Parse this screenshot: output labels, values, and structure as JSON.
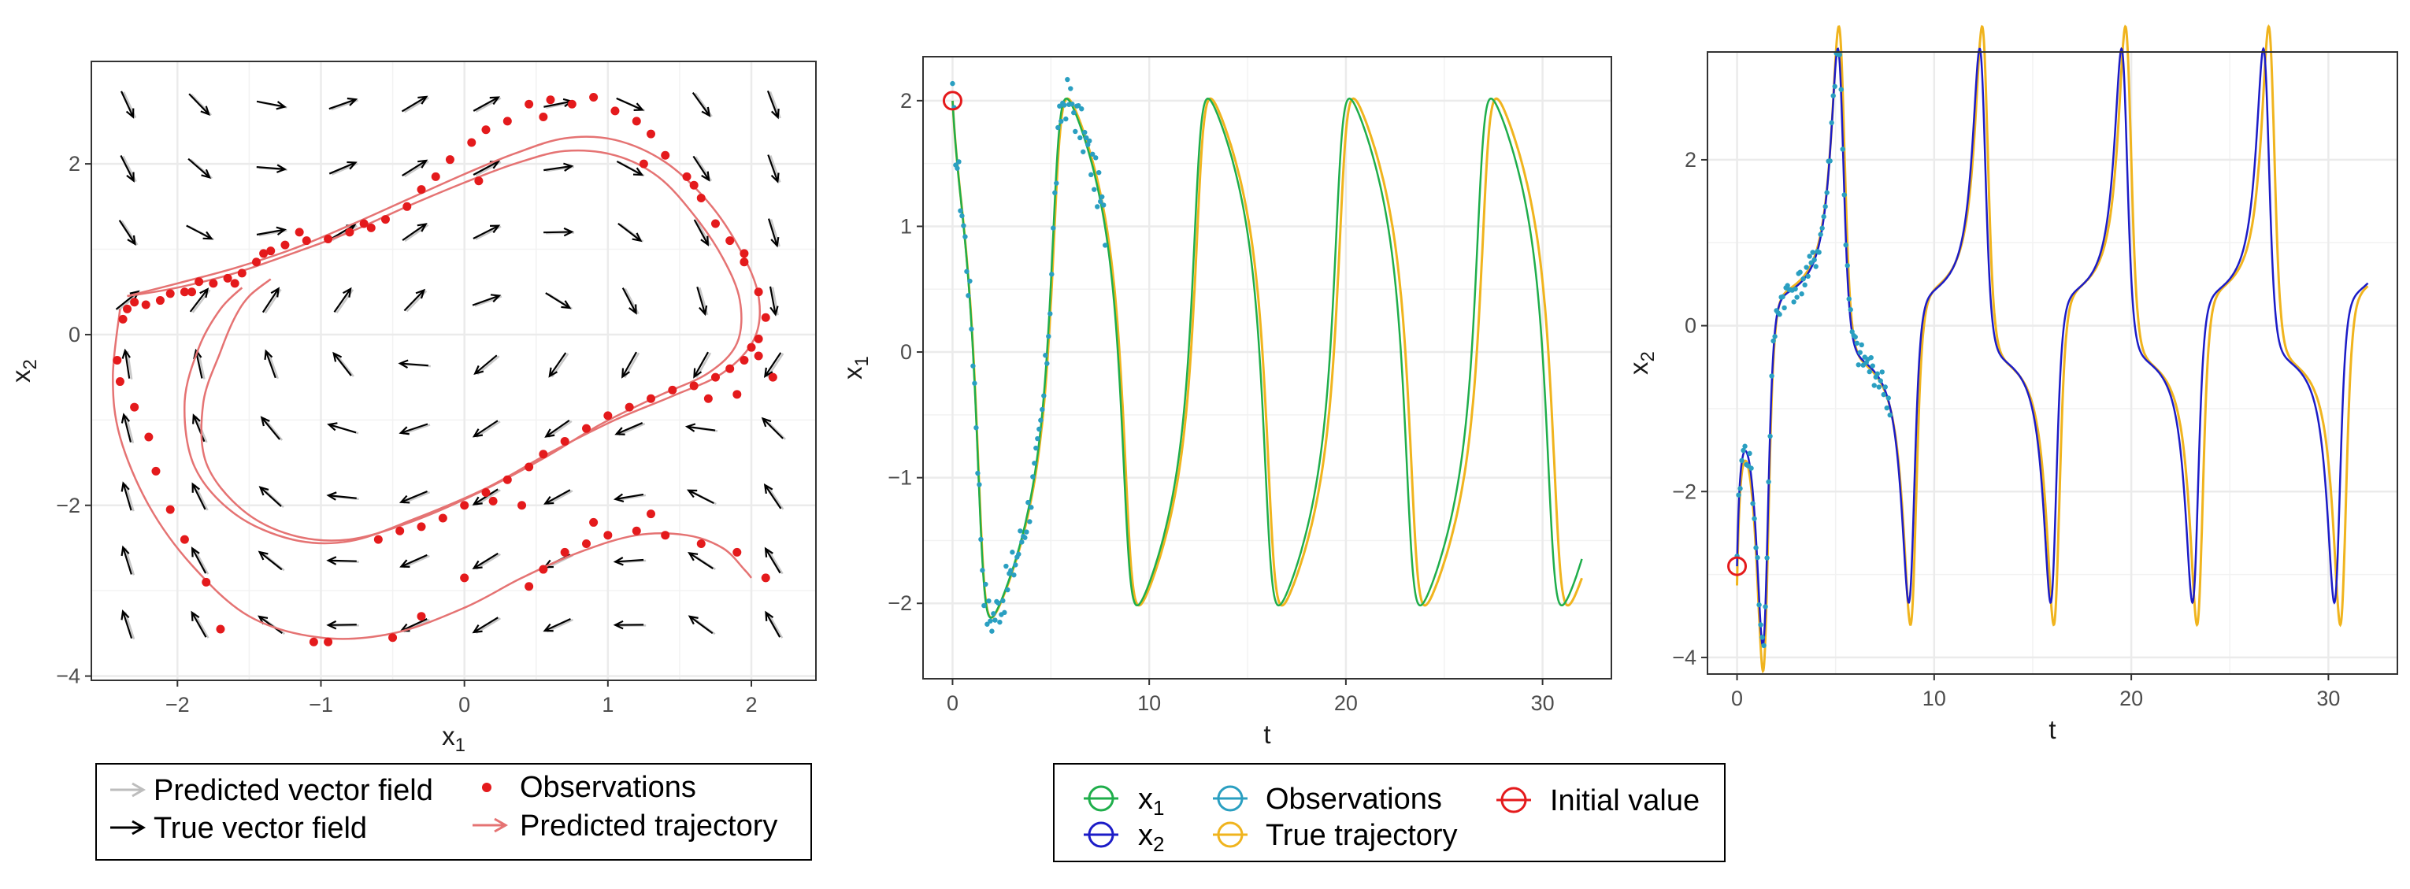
{
  "chart_data": [
    {
      "type": "scatter",
      "id": "phase",
      "title": "",
      "xlabel": "x",
      "xlabel_sub": "1",
      "ylabel": "x",
      "ylabel_sub": "2",
      "xlim": [
        -2.6,
        2.45
      ],
      "ylim": [
        -4.05,
        3.2
      ],
      "xticks": [
        -2,
        -1,
        0,
        1,
        2
      ],
      "xtick_labels": [
        "−2",
        "−1",
        "0",
        "1",
        "2"
      ],
      "yticks": [
        -4,
        -2,
        0,
        2
      ],
      "ytick_labels": [
        "−4",
        "−2",
        "0",
        "2"
      ],
      "field_x": [
        -2.35,
        -1.85,
        -1.35,
        -0.85,
        -0.35,
        0.15,
        0.65,
        1.15,
        1.65,
        2.15
      ],
      "field_y": [
        2.7,
        1.95,
        1.2,
        0.4,
        -0.35,
        -1.1,
        -1.9,
        -2.65,
        -3.4
      ],
      "observations": [
        [
          -2.42,
          -0.3
        ],
        [
          -2.38,
          0.18
        ],
        [
          -2.35,
          0.3
        ],
        [
          -2.3,
          0.38
        ],
        [
          -2.22,
          0.35
        ],
        [
          -2.12,
          0.4
        ],
        [
          -2.05,
          0.48
        ],
        [
          -1.95,
          0.5
        ],
        [
          -1.85,
          0.62
        ],
        [
          -1.75,
          0.6
        ],
        [
          -1.65,
          0.66
        ],
        [
          -1.55,
          0.72
        ],
        [
          -1.45,
          0.85
        ],
        [
          -1.35,
          0.98
        ],
        [
          -1.25,
          1.05
        ],
        [
          -1.1,
          1.1
        ],
        [
          -0.95,
          1.12
        ],
        [
          -0.8,
          1.2
        ],
        [
          -0.65,
          1.25
        ],
        [
          -0.55,
          1.35
        ],
        [
          -0.4,
          1.5
        ],
        [
          -0.3,
          1.7
        ],
        [
          -0.2,
          1.85
        ],
        [
          -0.1,
          2.05
        ],
        [
          0.05,
          2.25
        ],
        [
          0.15,
          2.4
        ],
        [
          0.3,
          2.5
        ],
        [
          0.45,
          2.7
        ],
        [
          0.6,
          2.75
        ],
        [
          0.75,
          2.7
        ],
        [
          0.9,
          2.78
        ],
        [
          1.05,
          2.62
        ],
        [
          1.2,
          2.5
        ],
        [
          1.3,
          2.35
        ],
        [
          1.4,
          2.1
        ],
        [
          1.55,
          1.85
        ],
        [
          1.65,
          1.6
        ],
        [
          1.75,
          1.3
        ],
        [
          1.85,
          1.1
        ],
        [
          1.95,
          0.85
        ],
        [
          2.05,
          0.5
        ],
        [
          2.1,
          0.2
        ],
        [
          2.05,
          -0.05
        ],
        [
          2.0,
          -0.15
        ],
        [
          1.95,
          -0.3
        ],
        [
          1.85,
          -0.4
        ],
        [
          1.75,
          -0.5
        ],
        [
          1.6,
          -0.6
        ],
        [
          1.45,
          -0.65
        ],
        [
          1.3,
          -0.75
        ],
        [
          1.15,
          -0.85
        ],
        [
          1.0,
          -0.95
        ],
        [
          0.85,
          -1.1
        ],
        [
          0.7,
          -1.25
        ],
        [
          0.55,
          -1.4
        ],
        [
          0.45,
          -1.55
        ],
        [
          0.3,
          -1.7
        ],
        [
          0.15,
          -1.85
        ],
        [
          0.0,
          -2.0
        ],
        [
          -0.15,
          -2.15
        ],
        [
          -0.3,
          -2.25
        ],
        [
          -0.45,
          -2.3
        ],
        [
          -0.6,
          -2.4
        ],
        [
          -1.05,
          -3.6
        ],
        [
          -0.95,
          -3.6
        ],
        [
          -0.5,
          -3.55
        ],
        [
          -0.3,
          -3.3
        ],
        [
          0.0,
          -2.85
        ],
        [
          0.45,
          -2.95
        ],
        [
          0.55,
          -2.75
        ],
        [
          0.7,
          -2.55
        ],
        [
          0.85,
          -2.45
        ],
        [
          1.0,
          -2.35
        ],
        [
          1.2,
          -2.3
        ],
        [
          1.4,
          -2.35
        ],
        [
          1.65,
          -2.45
        ],
        [
          1.9,
          -2.55
        ],
        [
          2.1,
          -2.85
        ],
        [
          -1.7,
          -3.45
        ],
        [
          -1.8,
          -2.9
        ],
        [
          -1.95,
          -2.4
        ],
        [
          -2.05,
          -2.05
        ],
        [
          -2.15,
          -1.6
        ],
        [
          -2.2,
          -1.2
        ],
        [
          -2.3,
          -0.85
        ],
        [
          -2.4,
          -0.55
        ],
        [
          -1.9,
          0.5
        ],
        [
          -1.6,
          0.6
        ],
        [
          -1.4,
          0.95
        ],
        [
          -1.15,
          1.2
        ],
        [
          -0.7,
          1.3
        ],
        [
          0.1,
          1.8
        ],
        [
          0.55,
          2.55
        ],
        [
          1.25,
          2.0
        ],
        [
          1.6,
          1.75
        ],
        [
          1.95,
          0.95
        ],
        [
          2.15,
          -0.5
        ],
        [
          2.05,
          -0.25
        ],
        [
          1.3,
          -2.1
        ],
        [
          0.9,
          -2.2
        ],
        [
          0.4,
          -2.0
        ],
        [
          0.2,
          -1.95
        ],
        [
          1.7,
          -0.75
        ],
        [
          1.9,
          -0.7
        ]
      ],
      "trajectory_inner": [
        [
          -2.35,
          0.45
        ],
        [
          -2.0,
          0.55
        ],
        [
          -1.6,
          0.72
        ],
        [
          -1.2,
          0.95
        ],
        [
          -0.8,
          1.2
        ],
        [
          -0.4,
          1.5
        ],
        [
          0.0,
          1.78
        ],
        [
          0.35,
          2.0
        ],
        [
          0.7,
          2.15
        ],
        [
          1.05,
          2.1
        ],
        [
          1.35,
          1.85
        ],
        [
          1.6,
          1.4
        ],
        [
          1.8,
          0.9
        ],
        [
          1.92,
          0.4
        ],
        [
          1.9,
          -0.1
        ],
        [
          1.7,
          -0.45
        ],
        [
          1.35,
          -0.72
        ],
        [
          0.95,
          -1.05
        ],
        [
          0.55,
          -1.45
        ],
        [
          0.1,
          -1.85
        ],
        [
          -0.35,
          -2.18
        ],
        [
          -0.8,
          -2.4
        ],
        [
          -1.2,
          -2.35
        ],
        [
          -1.55,
          -2.05
        ],
        [
          -1.8,
          -1.5
        ],
        [
          -1.82,
          -0.8
        ],
        [
          -1.7,
          -0.2
        ],
        [
          -1.6,
          0.2
        ],
        [
          -1.5,
          0.45
        ],
        [
          -1.35,
          0.65
        ]
      ],
      "trajectory_outer": [
        [
          -2.35,
          0.45
        ],
        [
          -2.0,
          0.6
        ],
        [
          -1.6,
          0.78
        ],
        [
          -1.2,
          1.0
        ],
        [
          -0.8,
          1.28
        ],
        [
          -0.4,
          1.58
        ],
        [
          0.0,
          1.88
        ],
        [
          0.35,
          2.12
        ],
        [
          0.7,
          2.3
        ],
        [
          1.05,
          2.28
        ],
        [
          1.4,
          2.02
        ],
        [
          1.7,
          1.55
        ],
        [
          1.92,
          1.0
        ],
        [
          2.05,
          0.45
        ],
        [
          2.02,
          -0.05
        ],
        [
          1.8,
          -0.45
        ],
        [
          1.45,
          -0.72
        ],
        [
          1.05,
          -1.0
        ],
        [
          0.6,
          -1.38
        ],
        [
          0.15,
          -1.8
        ],
        [
          -0.35,
          -2.16
        ],
        [
          -0.8,
          -2.42
        ],
        [
          -1.2,
          -2.4
        ],
        [
          -1.6,
          -2.1
        ],
        [
          -1.88,
          -1.55
        ],
        [
          -1.95,
          -0.8
        ],
        [
          -1.85,
          -0.15
        ],
        [
          -1.7,
          0.3
        ],
        [
          -1.55,
          0.55
        ]
      ],
      "trajectory_lower": [
        [
          -2.4,
          0.3
        ],
        [
          -2.45,
          -0.5
        ],
        [
          -2.4,
          -1.2
        ],
        [
          -2.2,
          -2.0
        ],
        [
          -1.9,
          -2.7
        ],
        [
          -1.5,
          -3.3
        ],
        [
          -1.0,
          -3.55
        ],
        [
          -0.5,
          -3.5
        ],
        [
          0.0,
          -3.2
        ],
        [
          0.4,
          -2.85
        ],
        [
          0.8,
          -2.55
        ],
        [
          1.2,
          -2.35
        ],
        [
          1.55,
          -2.35
        ],
        [
          1.8,
          -2.5
        ],
        [
          1.95,
          -2.75
        ],
        [
          2.0,
          -2.85
        ]
      ],
      "legend": {
        "predicted_field": "Predicted vector field",
        "true_field": "True vector field",
        "observations": "Observations",
        "predicted_trajectory": "Predicted trajectory"
      },
      "colors": {
        "obs": "#e41a1c",
        "traj": "#e57373",
        "true_field": "#000000",
        "pred_field": "#bdbdbd"
      }
    },
    {
      "type": "line",
      "id": "x1_series",
      "xlabel": "t",
      "ylabel": "x",
      "ylabel_sub": "1",
      "xlim": [
        -1.5,
        33.5
      ],
      "ylim": [
        -2.6,
        2.35
      ],
      "xticks": [
        0,
        10,
        20,
        30
      ],
      "xtick_labels": [
        "0",
        "10",
        "20",
        "30"
      ],
      "yticks": [
        -2,
        -1,
        0,
        1,
        2
      ],
      "ytick_labels": [
        "−2",
        "−1",
        "0",
        "1",
        "2"
      ],
      "period": 6.7,
      "t_end": 32,
      "obs_t_end": 7.8,
      "initial_value": [
        0,
        2.0
      ]
    },
    {
      "type": "line",
      "id": "x2_series",
      "xlabel": "t",
      "ylabel": "x",
      "ylabel_sub": "2",
      "xlim": [
        -1.5,
        33.5
      ],
      "ylim": [
        -4.2,
        3.3
      ],
      "xticks": [
        0,
        10,
        20,
        30
      ],
      "xtick_labels": [
        "0",
        "10",
        "20",
        "30"
      ],
      "yticks": [
        -4,
        -2,
        0,
        2
      ],
      "ytick_labels": [
        "−4",
        "−2",
        "0",
        "2"
      ],
      "period": 6.7,
      "t_end": 32,
      "obs_t_end": 7.8,
      "initial_value": [
        0,
        -2.9
      ]
    }
  ],
  "series_legend": {
    "x1": "x",
    "x1_sub": "1",
    "x2": "x",
    "x2_sub": "2",
    "observations": "Observations",
    "true_trajectory": "True trajectory",
    "initial_value": "Initial value"
  },
  "colors": {
    "x1": "#1fae4b",
    "x2": "#1c1cc7",
    "observations": "#2a9fc1",
    "true_trajectory": "#f0b41e",
    "initial_value": "#e41a1c"
  }
}
